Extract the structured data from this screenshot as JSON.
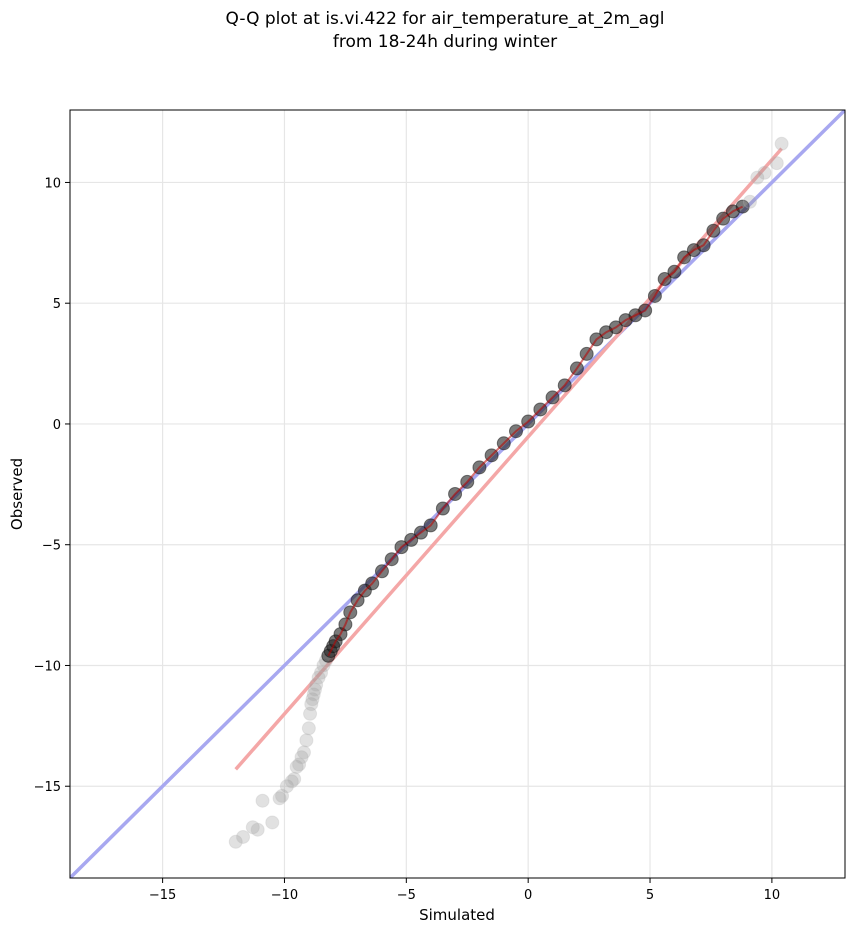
{
  "chart_data": {
    "type": "scatter",
    "title_line1": "Q-Q plot at is.vi.422 for air_temperature_at_2m_agl",
    "title_line2": "from 18-24h during winter",
    "xlabel": "Simulated",
    "ylabel": "Observed",
    "xlim": [
      -18.8,
      13.0
    ],
    "ylim": [
      -18.8,
      13.0
    ],
    "x_ticks": [
      -15,
      -10,
      -5,
      0,
      5,
      10
    ],
    "y_ticks": [
      -15,
      -10,
      -5,
      0,
      5,
      10
    ],
    "x_tick_labels": [
      "−15",
      "−10",
      "−5",
      "0",
      "5",
      "10"
    ],
    "y_tick_labels": [
      "−15",
      "−10",
      "−5",
      "0",
      "5",
      "10"
    ],
    "grid": true,
    "colors": {
      "points": "#222222",
      "identity_line": "#a8a8f0",
      "fit_line": "#f4a7a7",
      "inner_line": "#b80000"
    },
    "identity_line": {
      "x": [
        -18.8,
        13.0
      ],
      "y": [
        -18.8,
        13.0
      ]
    },
    "fit_line": {
      "x": [
        -12.0,
        10.4
      ],
      "y": [
        -14.3,
        11.4
      ]
    },
    "points": {
      "x": [
        -12.0,
        -11.7,
        -11.3,
        -11.1,
        -10.9,
        -10.5,
        -10.2,
        -10.1,
        -9.9,
        -9.7,
        -9.6,
        -9.5,
        -9.4,
        -9.3,
        -9.2,
        -9.1,
        -9.0,
        -8.95,
        -8.9,
        -8.85,
        -8.8,
        -8.75,
        -8.7,
        -8.6,
        -8.5,
        -8.4,
        -8.3,
        -8.2,
        -8.1,
        -8.0,
        -7.9,
        -7.7,
        -7.5,
        -7.3,
        -7.0,
        -6.7,
        -6.4,
        -6.0,
        -5.6,
        -5.2,
        -4.8,
        -4.4,
        -4.0,
        -3.5,
        -3.0,
        -2.5,
        -2.0,
        -1.5,
        -1.0,
        -0.5,
        0.0,
        0.5,
        1.0,
        1.5,
        2.0,
        2.4,
        2.8,
        3.2,
        3.6,
        4.0,
        4.4,
        4.8,
        5.2,
        5.6,
        6.0,
        6.4,
        6.8,
        7.2,
        7.6,
        8.0,
        8.4,
        8.8,
        9.1,
        9.4,
        9.7,
        10.2,
        10.4
      ],
      "y": [
        -17.3,
        -17.1,
        -16.7,
        -16.8,
        -15.6,
        -16.5,
        -15.5,
        -15.4,
        -15.0,
        -14.8,
        -14.7,
        -14.2,
        -14.1,
        -13.8,
        -13.6,
        -13.1,
        -12.6,
        -12.0,
        -11.6,
        -11.4,
        -11.2,
        -11.0,
        -10.8,
        -10.5,
        -10.3,
        -10.0,
        -9.8,
        -9.6,
        -9.4,
        -9.2,
        -9.0,
        -8.7,
        -8.3,
        -7.8,
        -7.3,
        -6.9,
        -6.6,
        -6.1,
        -5.6,
        -5.1,
        -4.8,
        -4.5,
        -4.2,
        -3.5,
        -2.9,
        -2.4,
        -1.8,
        -1.3,
        -0.8,
        -0.3,
        0.1,
        0.6,
        1.1,
        1.6,
        2.3,
        2.9,
        3.5,
        3.8,
        4.0,
        4.3,
        4.5,
        4.7,
        5.3,
        6.0,
        6.3,
        6.9,
        7.2,
        7.4,
        8.0,
        8.5,
        8.8,
        9.0,
        9.2,
        10.2,
        10.4,
        10.8,
        11.6
      ]
    }
  }
}
